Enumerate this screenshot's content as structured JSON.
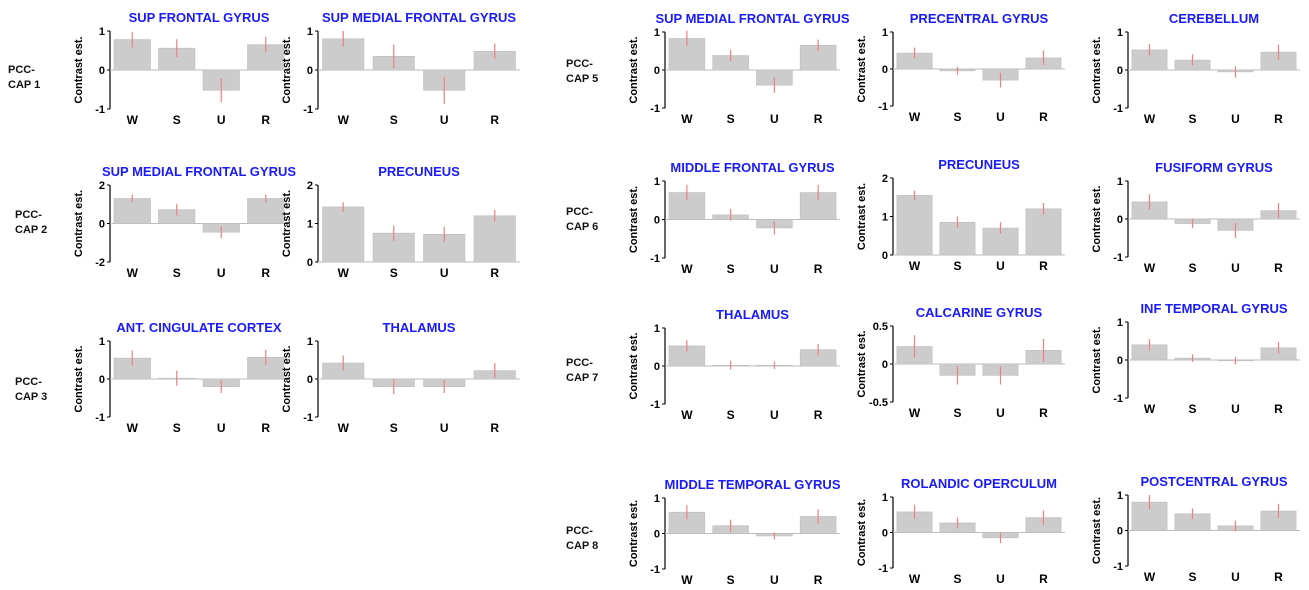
{
  "colors": {
    "title": "#1a1aff",
    "bar": "#cccccc",
    "bar_edge": "#bdbdbd",
    "error": "#f08080",
    "axis": "#000000"
  },
  "row_labels": [
    {
      "line1": "PCC-",
      "line2": "CAP 1"
    },
    {
      "line1": "PCC-",
      "line2": "CAP 2"
    },
    {
      "line1": "PCC-",
      "line2": "CAP 3"
    },
    {
      "line1": "PCC-",
      "line2": "CAP 5"
    },
    {
      "line1": "PCC-",
      "line2": "CAP 6"
    },
    {
      "line1": "PCC-",
      "line2": "CAP 7"
    },
    {
      "line1": "PCC-",
      "line2": "CAP 8"
    }
  ],
  "chart_data": [
    {
      "type": "bar",
      "title": "SUP FRONTAL GYRUS",
      "ylabel": "Contrast est.",
      "categories": [
        "W",
        "S",
        "U",
        "R"
      ],
      "values": [
        0.78,
        0.56,
        -0.52,
        0.65
      ],
      "errors": [
        0.2,
        0.23,
        0.3,
        0.2
      ],
      "ylim": [
        -1,
        1
      ],
      "yticks": [
        "1",
        "0",
        "-1"
      ],
      "ytick_values": [
        1,
        0,
        -1
      ]
    },
    {
      "type": "bar",
      "title": "SUP MEDIAL FRONTAL GYRUS",
      "ylabel": "Contrast est.",
      "categories": [
        "W",
        "S",
        "U",
        "R"
      ],
      "values": [
        0.8,
        0.35,
        -0.52,
        0.48
      ],
      "errors": [
        0.2,
        0.3,
        0.35,
        0.2
      ],
      "ylim": [
        -1,
        1
      ],
      "yticks": [
        "1",
        "0",
        "-1"
      ],
      "ytick_values": [
        1,
        0,
        -1
      ]
    },
    {
      "type": "bar",
      "title": "SUP MEDIAL FRONTAL GYRUS",
      "ylabel": "Contrast est.",
      "categories": [
        "W",
        "S",
        "U",
        "R"
      ],
      "values": [
        1.3,
        0.72,
        -0.45,
        1.3
      ],
      "errors": [
        0.2,
        0.3,
        0.3,
        0.2
      ],
      "ylim": [
        -2,
        2
      ],
      "yticks": [
        "2",
        "0",
        "-2"
      ],
      "ytick_values": [
        2,
        0,
        -2
      ]
    },
    {
      "type": "bar",
      "title": "PRECUNEUS",
      "ylabel": "Contrast est.",
      "categories": [
        "W",
        "S",
        "U",
        "R"
      ],
      "values": [
        1.43,
        0.75,
        0.72,
        1.2
      ],
      "errors": [
        0.12,
        0.2,
        0.2,
        0.15
      ],
      "ylim": [
        0,
        2
      ],
      "yticks": [
        "2",
        "1",
        "0"
      ],
      "ytick_values": [
        2,
        1,
        0
      ]
    },
    {
      "type": "bar",
      "title": "ANT. CINGULATE CORTEX",
      "ylabel": "Contrast est.",
      "categories": [
        "W",
        "S",
        "U",
        "R"
      ],
      "values": [
        0.55,
        0.02,
        -0.2,
        0.57
      ],
      "errors": [
        0.2,
        0.2,
        0.17,
        0.2
      ],
      "ylim": [
        -1,
        1
      ],
      "yticks": [
        "1",
        "0",
        "-1"
      ],
      "ytick_values": [
        1,
        0,
        -1
      ]
    },
    {
      "type": "bar",
      "title": "THALAMUS",
      "ylabel": "Contrast est.",
      "categories": [
        "W",
        "S",
        "U",
        "R"
      ],
      "values": [
        0.42,
        -0.2,
        -0.2,
        0.22
      ],
      "errors": [
        0.2,
        0.2,
        0.17,
        0.2
      ],
      "ylim": [
        -1,
        1
      ],
      "yticks": [
        "1",
        "0",
        "-1"
      ],
      "ytick_values": [
        1,
        0,
        -1
      ]
    },
    {
      "type": "bar",
      "title": "SUP MEDIAL FRONTAL GYRUS",
      "ylabel": "Contrast est.",
      "categories": [
        "W",
        "S",
        "U",
        "R"
      ],
      "values": [
        0.83,
        0.38,
        -0.4,
        0.65
      ],
      "errors": [
        0.2,
        0.15,
        0.2,
        0.15
      ],
      "ylim": [
        -1,
        1
      ],
      "yticks": [
        "1",
        "0",
        "-1"
      ],
      "ytick_values": [
        1,
        0,
        -1
      ]
    },
    {
      "type": "bar",
      "title": "PRECENTRAL GYRUS",
      "ylabel": "Contrast est.",
      "categories": [
        "W",
        "S",
        "U",
        "R"
      ],
      "values": [
        0.43,
        -0.05,
        -0.3,
        0.3
      ],
      "errors": [
        0.15,
        0.1,
        0.2,
        0.2
      ],
      "ylim": [
        -1,
        1
      ],
      "yticks": [
        "1",
        "0",
        "-1"
      ],
      "ytick_values": [
        1,
        0,
        -1
      ]
    },
    {
      "type": "bar",
      "title": "CEREBELLUM",
      "ylabel": "Contrast est.",
      "categories": [
        "W",
        "S",
        "U",
        "R"
      ],
      "values": [
        0.53,
        0.26,
        -0.05,
        0.47
      ],
      "errors": [
        0.15,
        0.15,
        0.15,
        0.2
      ],
      "ylim": [
        -1,
        1
      ],
      "yticks": [
        "1",
        "0",
        "-1"
      ],
      "ytick_values": [
        1,
        0,
        -1
      ]
    },
    {
      "type": "bar",
      "title": "MIDDLE FRONTAL GYRUS",
      "ylabel": "Contrast est.",
      "categories": [
        "W",
        "S",
        "U",
        "R"
      ],
      "values": [
        0.7,
        0.12,
        -0.22,
        0.7
      ],
      "errors": [
        0.2,
        0.15,
        0.17,
        0.2
      ],
      "ylim": [
        -1,
        1
      ],
      "yticks": [
        "1",
        "0",
        "-1"
      ],
      "ytick_values": [
        1,
        0,
        -1
      ]
    },
    {
      "type": "bar",
      "title": "PRECUNEUS",
      "ylabel": "Contrast est.",
      "categories": [
        "W",
        "S",
        "U",
        "R"
      ],
      "values": [
        1.55,
        0.85,
        0.7,
        1.2
      ],
      "errors": [
        0.12,
        0.15,
        0.15,
        0.15
      ],
      "ylim": [
        0,
        2
      ],
      "yticks": [
        "2",
        "1",
        "0"
      ],
      "ytick_values": [
        2,
        1,
        0
      ]
    },
    {
      "type": "bar",
      "title": "FUSIFORM GYRUS",
      "ylabel": "Contrast est.",
      "categories": [
        "W",
        "S",
        "U",
        "R"
      ],
      "values": [
        0.45,
        -0.12,
        -0.3,
        0.22
      ],
      "errors": [
        0.2,
        0.12,
        0.2,
        0.2
      ],
      "ylim": [
        -1,
        1
      ],
      "yticks": [
        "1",
        "0",
        "-1"
      ],
      "ytick_values": [
        1,
        0,
        -1
      ]
    },
    {
      "type": "bar",
      "title": "THALAMUS",
      "ylabel": "Contrast est.",
      "categories": [
        "W",
        "S",
        "U",
        "R"
      ],
      "values": [
        0.53,
        0.02,
        0.02,
        0.43
      ],
      "errors": [
        0.15,
        0.12,
        0.1,
        0.15
      ],
      "ylim": [
        -1,
        1
      ],
      "yticks": [
        "1",
        "0",
        "-1"
      ],
      "ytick_values": [
        1,
        0,
        -1
      ]
    },
    {
      "type": "bar",
      "title": "CALCARINE GYRUS",
      "ylabel": "Contrast est.",
      "categories": [
        "W",
        "S",
        "U",
        "R"
      ],
      "values": [
        0.23,
        -0.15,
        -0.15,
        0.18
      ],
      "errors": [
        0.15,
        0.12,
        0.12,
        0.15
      ],
      "ylim": [
        -0.5,
        0.5
      ],
      "yticks": [
        "0.5",
        "0",
        "-0.5"
      ],
      "ytick_values": [
        0.5,
        0,
        -0.5
      ]
    },
    {
      "type": "bar",
      "title": "INF TEMPORAL GYRUS",
      "ylabel": "Contrast est.",
      "categories": [
        "W",
        "S",
        "U",
        "R"
      ],
      "values": [
        0.4,
        0.05,
        -0.02,
        0.32
      ],
      "errors": [
        0.15,
        0.1,
        0.1,
        0.15
      ],
      "ylim": [
        -1,
        1
      ],
      "yticks": [
        "1",
        "0",
        "-1"
      ],
      "ytick_values": [
        1,
        0,
        -1
      ]
    },
    {
      "type": "bar",
      "title": "MIDDLE TEMPORAL GYRUS",
      "ylabel": "Contrast est.",
      "categories": [
        "W",
        "S",
        "U",
        "R"
      ],
      "values": [
        0.6,
        0.22,
        -0.07,
        0.48
      ],
      "errors": [
        0.2,
        0.17,
        0.1,
        0.2
      ],
      "ylim": [
        -1,
        1
      ],
      "yticks": [
        "1",
        "0",
        "-1"
      ],
      "ytick_values": [
        1,
        0,
        -1
      ]
    },
    {
      "type": "bar",
      "title": "ROLANDIC OPERCULUM",
      "ylabel": "Contrast est.",
      "categories": [
        "W",
        "S",
        "U",
        "R"
      ],
      "values": [
        0.58,
        0.27,
        -0.15,
        0.42
      ],
      "errors": [
        0.2,
        0.15,
        0.15,
        0.2
      ],
      "ylim": [
        -1,
        1
      ],
      "yticks": [
        "1",
        "0",
        "-1"
      ],
      "ytick_values": [
        1,
        0,
        -1
      ]
    },
    {
      "type": "bar",
      "title": "POSTCENTRAL GYRUS",
      "ylabel": "Contrast est.",
      "categories": [
        "W",
        "S",
        "U",
        "R"
      ],
      "values": [
        0.8,
        0.47,
        0.13,
        0.55
      ],
      "errors": [
        0.2,
        0.15,
        0.15,
        0.2
      ],
      "ylim": [
        -1,
        1
      ],
      "yticks": [
        "1",
        "0",
        "-1"
      ],
      "ytick_values": [
        1,
        0,
        -1
      ]
    }
  ]
}
